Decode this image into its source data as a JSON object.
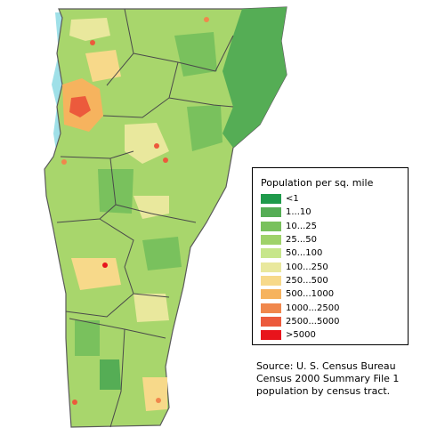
{
  "legend": {
    "title": "Population per sq. mile",
    "classes": [
      {
        "label": "<1",
        "color": "#1f9a4b"
      },
      {
        "label": "1...10",
        "color": "#55ad55"
      },
      {
        "label": "10...25",
        "color": "#79c15d"
      },
      {
        "label": "25...50",
        "color": "#9fd26a"
      },
      {
        "label": "50...100",
        "color": "#c7e68b"
      },
      {
        "label": "100...250",
        "color": "#e9e89d"
      },
      {
        "label": "250...500",
        "color": "#f7d98a"
      },
      {
        "label": "500...1000",
        "color": "#f6b35e"
      },
      {
        "label": "1000...2500",
        "color": "#f0874c"
      },
      {
        "label": "2500...5000",
        "color": "#ec5a3c"
      },
      {
        "label": ">5000",
        "color": "#e8141c"
      }
    ]
  },
  "source": {
    "line1": "Source: U. S. Census Bureau",
    "line2": "Census 2000 Summary File 1",
    "line3": "population by census tract."
  },
  "water_color": "#9fe0e8"
}
